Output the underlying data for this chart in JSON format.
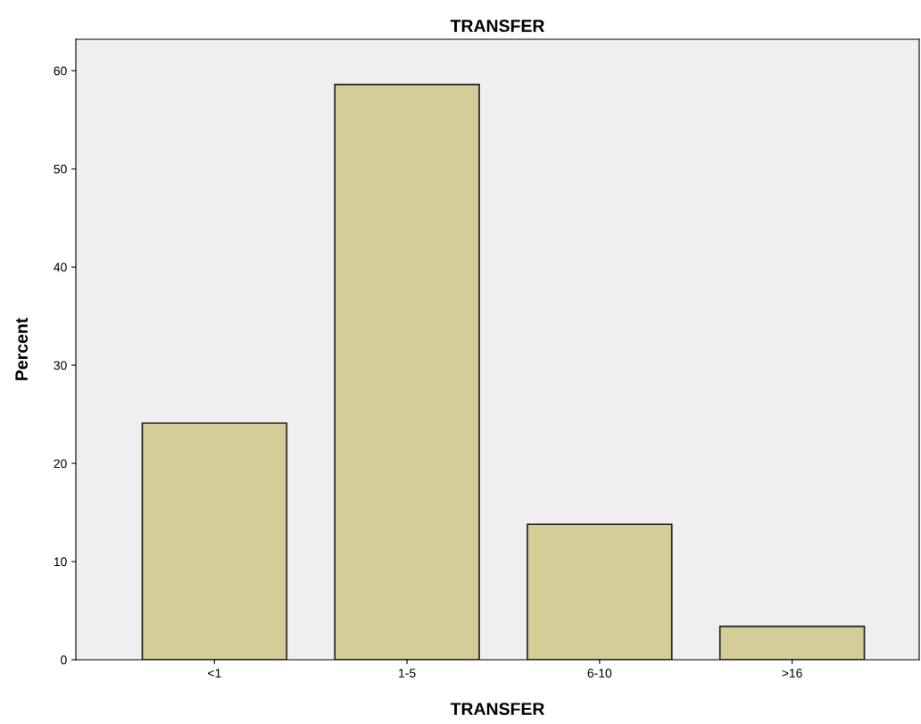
{
  "chart_data": {
    "type": "bar",
    "title": "TRANSFER",
    "xlabel": "TRANSFER",
    "ylabel": "Percent",
    "categories": [
      "<1",
      "1-5",
      "6-10",
      ">16"
    ],
    "values": [
      24.1,
      58.6,
      13.8,
      3.4
    ],
    "color": "#d3cd97",
    "ylim": [
      0,
      63.2
    ],
    "yticks": [
      0,
      10,
      20,
      30,
      40,
      50,
      60
    ],
    "grid": false
  }
}
